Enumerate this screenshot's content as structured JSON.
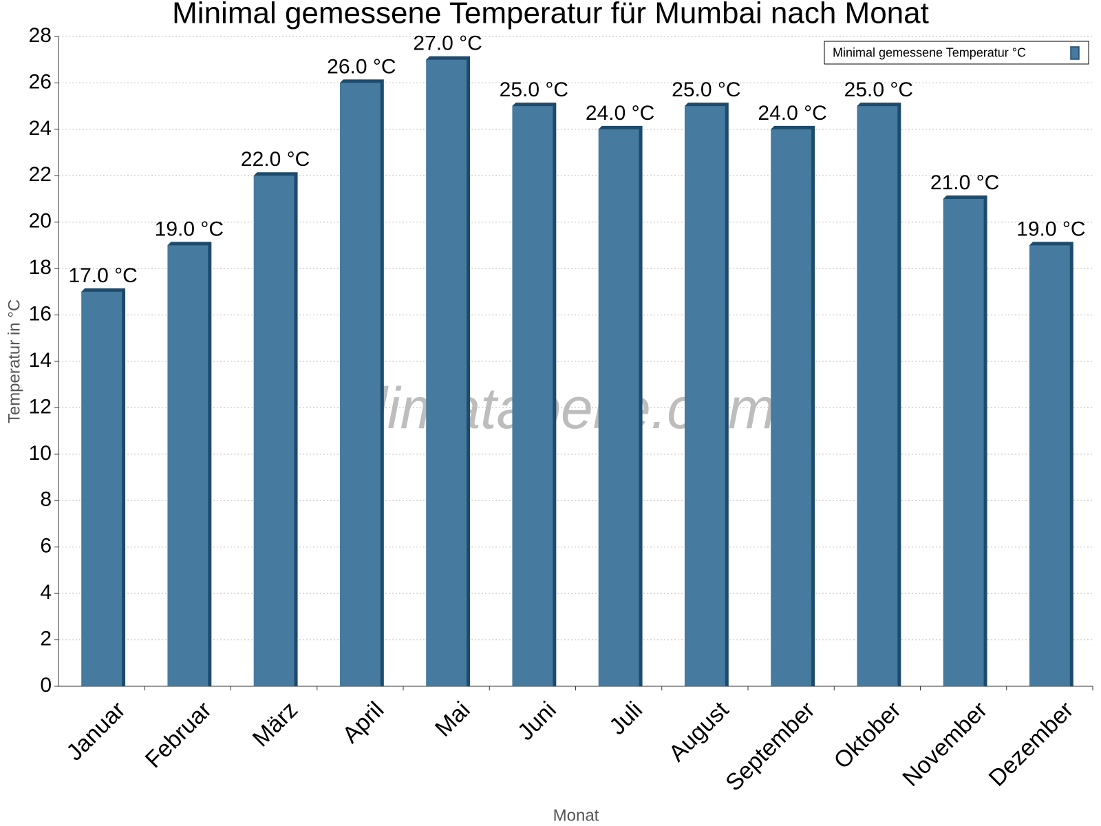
{
  "chart_data": {
    "type": "bar",
    "title": "Minimal gemessene Temperatur für Mumbai nach Monat",
    "watermark": "klimatabelle.com",
    "x_label": "Monat",
    "y_label": "Temperatur in °C",
    "categories": [
      "Januar",
      "Februar",
      "März",
      "April",
      "Mai",
      "Juni",
      "Juli",
      "August",
      "September",
      "Oktober",
      "November",
      "Dezember"
    ],
    "series": [
      {
        "name": "Minimal gemessene Temperatur °C",
        "color": "#467a9e",
        "values": [
          17,
          19,
          22,
          26,
          27,
          25,
          24,
          25,
          24,
          25,
          21,
          19
        ],
        "value_labels": [
          "17.0 °C",
          "19.0 °C",
          "22.0 °C",
          "26.0 °C",
          "27.0 °C",
          "25.0 °C",
          "24.0 °C",
          "25.0 °C",
          "24.0 °C",
          "25.0 °C",
          "21.0 °C",
          "19.0 °C"
        ]
      }
    ],
    "ylim": [
      0,
      28
    ],
    "yticks": [
      0,
      2,
      4,
      6,
      8,
      10,
      12,
      14,
      16,
      18,
      20,
      22,
      24,
      26,
      28
    ],
    "grid": true,
    "legend": "top-right"
  }
}
